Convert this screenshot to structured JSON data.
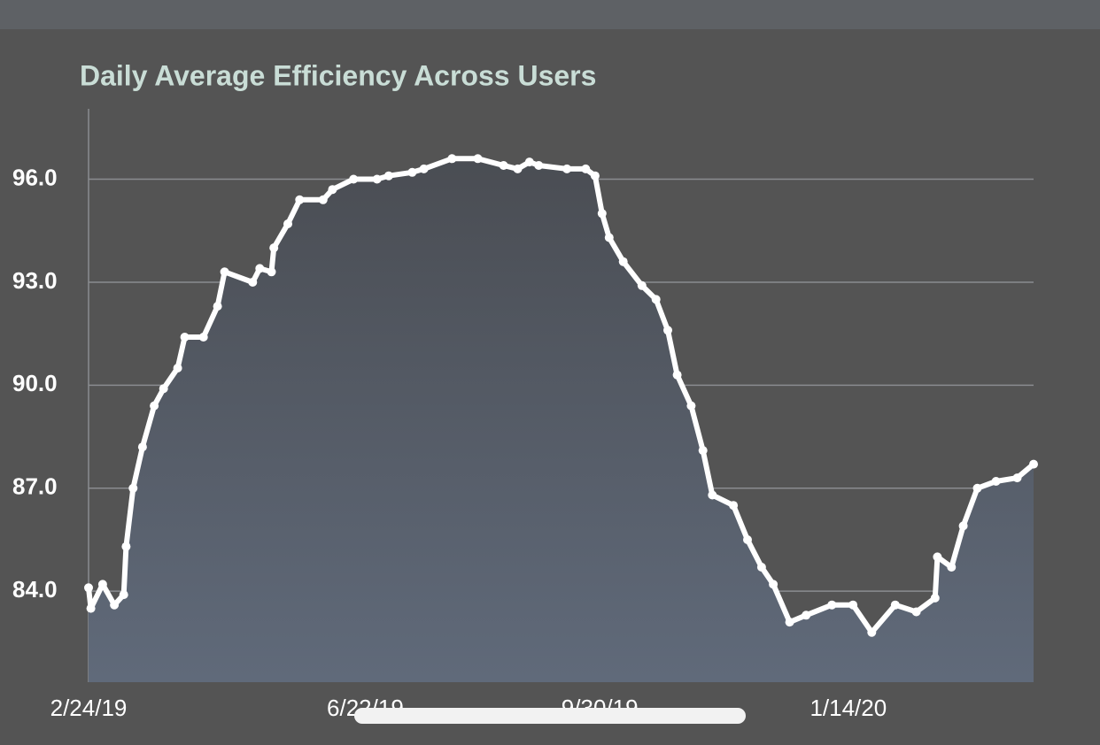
{
  "chart_data": {
    "type": "line",
    "title": "Daily Average Efficiency Across Users",
    "x": [
      "2/24/19",
      "2/25/19",
      "3/2/19",
      "3/7/19",
      "3/11/19",
      "3/12/19",
      "3/15/19",
      "3/19/19",
      "3/24/19",
      "3/28/19",
      "4/3/19",
      "4/6/19",
      "4/14/19",
      "4/20/19",
      "4/23/19",
      "5/5/19",
      "5/8/19",
      "5/13/19",
      "5/14/19",
      "5/20/19",
      "5/25/19",
      "6/4/19",
      "6/8/19",
      "6/17/19",
      "6/27/19",
      "7/2/19",
      "7/12/19",
      "7/17/19",
      "7/29/19",
      "8/9/19",
      "8/20/19",
      "8/26/19",
      "8/31/19",
      "9/4/19",
      "9/16/19",
      "9/24/19",
      "9/28/19",
      "10/1/19",
      "10/4/19",
      "10/10/19",
      "10/18/19",
      "10/24/19",
      "10/29/19",
      "11/2/19",
      "11/8/19",
      "11/13/19",
      "11/17/19",
      "11/26/19",
      "12/2/19",
      "12/8/19",
      "12/13/19",
      "12/20/19",
      "12/27/19",
      "1/7/20",
      "1/16/20",
      "1/24/20",
      "2/3/20",
      "2/12/20",
      "2/20/20",
      "2/21/20",
      "2/27/20",
      "3/3/20",
      "3/9/20",
      "3/17/20",
      "3/26/20",
      "4/2/20"
    ],
    "series": [
      {
        "color": "#ffffff",
        "values": [
          84.1,
          83.5,
          84.2,
          83.6,
          83.9,
          85.3,
          87.0,
          88.2,
          89.4,
          89.9,
          90.5,
          91.4,
          91.4,
          92.3,
          93.3,
          93.0,
          93.4,
          93.3,
          94.0,
          94.7,
          95.4,
          95.4,
          95.7,
          96.0,
          96.0,
          96.1,
          96.2,
          96.3,
          96.6,
          96.6,
          96.4,
          96.3,
          96.5,
          96.4,
          96.3,
          96.3,
          96.1,
          95.0,
          94.3,
          93.6,
          92.9,
          92.5,
          91.6,
          90.3,
          89.4,
          88.1,
          86.8,
          86.5,
          85.5,
          84.7,
          84.2,
          83.1,
          83.3,
          83.6,
          83.6,
          82.8,
          83.6,
          83.4,
          83.8,
          85.0,
          84.7,
          85.9,
          87.0,
          87.2,
          87.3,
          87.7
        ]
      }
    ],
    "xlim": [
      "2/24/19",
      "4/2/20"
    ],
    "xticks": [
      "2/24/19",
      "6/22/19",
      "9/30/19",
      "1/14/20"
    ],
    "ylim": [
      81.35,
      98.05
    ],
    "yticks": [
      {
        "value": 84,
        "label": "84.0"
      },
      {
        "value": 87,
        "label": "87.0"
      },
      {
        "value": 90,
        "label": "90.0"
      },
      {
        "value": 93,
        "label": "93.0"
      },
      {
        "value": 96,
        "label": "96.0"
      }
    ],
    "grid": true
  }
}
